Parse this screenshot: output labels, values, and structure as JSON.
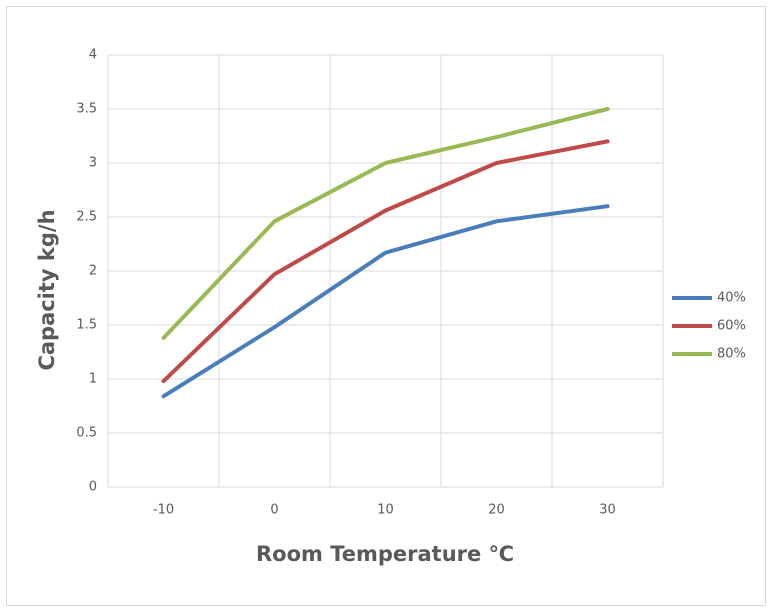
{
  "chart_data": {
    "type": "line",
    "x_label": "Room Temperature    ℃",
    "y_label": "Capacity    kg/h",
    "categories": [
      "-10",
      "0",
      "10",
      "20",
      "30"
    ],
    "series": [
      {
        "name": "40%",
        "color": "#4a7ebb",
        "values": [
          0.84,
          1.48,
          2.17,
          2.46,
          2.6
        ]
      },
      {
        "name": "60%",
        "color": "#be4b48",
        "values": [
          0.98,
          1.97,
          2.56,
          3.0,
          3.2
        ]
      },
      {
        "name": "80%",
        "color": "#98b954",
        "values": [
          1.38,
          2.46,
          3.0,
          3.24,
          3.5
        ]
      }
    ],
    "ylim": [
      0,
      4
    ],
    "yticks": [
      0,
      0.5,
      1,
      1.5,
      2,
      2.5,
      3,
      3.5,
      4
    ],
    "grid": true,
    "legend": "right"
  }
}
